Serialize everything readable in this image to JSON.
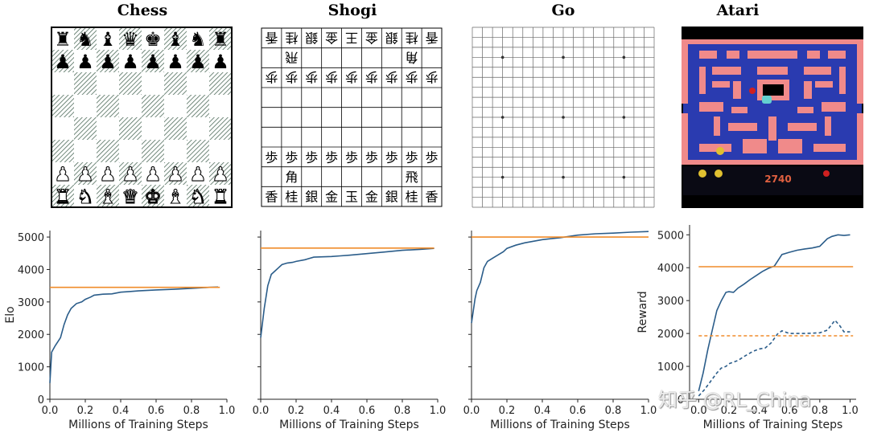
{
  "panels": [
    {
      "title": "Chess"
    },
    {
      "title": "Shogi"
    },
    {
      "title": "Go"
    },
    {
      "title": "Atari"
    }
  ],
  "chess": {
    "rows": [
      [
        "bR",
        "bN",
        "bB",
        "bQ",
        "bK",
        "bB",
        "bN",
        "bR"
      ],
      [
        "bP",
        "bP",
        "bP",
        "bP",
        "bP",
        "bP",
        "bP",
        "bP"
      ],
      [
        "",
        "",
        "",
        "",
        "",
        "",
        "",
        ""
      ],
      [
        "",
        "",
        "",
        "",
        "",
        "",
        "",
        ""
      ],
      [
        "",
        "",
        "",
        "",
        "",
        "",
        "",
        ""
      ],
      [
        "",
        "",
        "",
        "",
        "",
        "",
        "",
        ""
      ],
      [
        "wP",
        "wP",
        "wP",
        "wP",
        "wP",
        "wP",
        "wP",
        "wP"
      ],
      [
        "wR",
        "wN",
        "wB",
        "wQ",
        "wK",
        "wB",
        "wN",
        "wR"
      ]
    ]
  },
  "shogi": {
    "rows": [
      [
        "香",
        "桂",
        "銀",
        "金",
        "王",
        "金",
        "銀",
        "桂",
        "香"
      ],
      [
        "",
        "飛",
        "",
        "",
        "",
        "",
        "",
        "角",
        ""
      ],
      [
        "歩",
        "歩",
        "歩",
        "歩",
        "歩",
        "歩",
        "歩",
        "歩",
        "歩"
      ],
      [
        "",
        "",
        "",
        "",
        "",
        "",
        "",
        "",
        ""
      ],
      [
        "",
        "",
        "",
        "",
        "",
        "",
        "",
        "",
        ""
      ],
      [
        "",
        "",
        "",
        "",
        "",
        "",
        "",
        "",
        ""
      ],
      [
        "歩",
        "歩",
        "歩",
        "歩",
        "歩",
        "歩",
        "歩",
        "歩",
        "歩"
      ],
      [
        "",
        "角",
        "",
        "",
        "",
        "",
        "",
        "飛",
        ""
      ],
      [
        "香",
        "桂",
        "銀",
        "金",
        "玉",
        "金",
        "銀",
        "桂",
        "香"
      ]
    ],
    "flipped_rows": 3
  },
  "go": {
    "size": 19,
    "star_points": [
      3,
      9,
      15
    ]
  },
  "atari": {
    "score": "2740"
  },
  "watermark": "知乎 @RL_China",
  "colors": {
    "agent_line": "#2b5d8a",
    "baseline_line": "#f08c2a",
    "axis": "#222222"
  },
  "chart_data": [
    {
      "type": "line",
      "ylabel": "Elo",
      "xlabel": "Millions of Training Steps",
      "xlim": [
        0,
        1.0
      ],
      "ylim": [
        0,
        5200
      ],
      "xticks": [
        "0.0",
        "0.2",
        "0.4",
        "0.6",
        "0.8",
        "1.0"
      ],
      "yticks": [
        0,
        1000,
        2000,
        3000,
        4000,
        5000
      ],
      "show_ytick_labels": true,
      "series": [
        {
          "style": "solid",
          "color": "agent",
          "x": [
            0.0,
            0.01,
            0.03,
            0.06,
            0.08,
            0.1,
            0.12,
            0.15,
            0.18,
            0.2,
            0.23,
            0.25,
            0.3,
            0.35,
            0.4,
            0.45,
            0.5,
            0.6,
            0.7,
            0.8,
            0.9,
            0.95
          ],
          "y": [
            500,
            1450,
            1650,
            1900,
            2300,
            2600,
            2800,
            2950,
            3000,
            3080,
            3150,
            3210,
            3240,
            3250,
            3300,
            3320,
            3340,
            3370,
            3390,
            3420,
            3450,
            3460
          ]
        },
        {
          "style": "hline",
          "color": "baseline",
          "x": [
            0.0,
            0.96
          ],
          "y": [
            3450,
            3450
          ]
        }
      ]
    },
    {
      "type": "line",
      "ylabel": "",
      "xlabel": "Millions of Training Steps",
      "xlim": [
        0,
        1.0
      ],
      "ylim": [
        0,
        5200
      ],
      "xticks": [
        "0.0",
        "0.2",
        "0.4",
        "0.6",
        "0.8",
        "1.0"
      ],
      "yticks": [
        0,
        1000,
        2000,
        3000,
        4000,
        5000
      ],
      "show_ytick_labels": false,
      "series": [
        {
          "style": "solid",
          "color": "agent",
          "x": [
            0.0,
            0.02,
            0.04,
            0.06,
            0.08,
            0.1,
            0.12,
            0.15,
            0.18,
            0.2,
            0.25,
            0.3,
            0.35,
            0.4,
            0.45,
            0.5,
            0.6,
            0.7,
            0.8,
            0.9,
            0.98
          ],
          "y": [
            1900,
            2800,
            3500,
            3850,
            3950,
            4050,
            4150,
            4200,
            4220,
            4250,
            4300,
            4380,
            4390,
            4400,
            4420,
            4440,
            4490,
            4540,
            4590,
            4620,
            4650
          ]
        },
        {
          "style": "hline",
          "color": "baseline",
          "x": [
            0.0,
            0.98
          ],
          "y": [
            4660,
            4660
          ]
        }
      ]
    },
    {
      "type": "line",
      "ylabel": "",
      "xlabel": "Millions of Training Steps",
      "xlim": [
        0,
        1.0
      ],
      "ylim": [
        0,
        5200
      ],
      "xticks": [
        "0.0",
        "0.2",
        "0.4",
        "0.6",
        "0.8",
        "1.0"
      ],
      "yticks": [
        0,
        1000,
        2000,
        3000,
        4000,
        5000
      ],
      "show_ytick_labels": false,
      "series": [
        {
          "style": "solid",
          "color": "agent",
          "x": [
            0.0,
            0.02,
            0.03,
            0.05,
            0.07,
            0.09,
            0.12,
            0.15,
            0.18,
            0.2,
            0.25,
            0.3,
            0.35,
            0.4,
            0.45,
            0.5,
            0.55,
            0.6,
            0.7,
            0.8,
            0.9,
            1.0
          ],
          "y": [
            2350,
            3100,
            3350,
            3600,
            4050,
            4250,
            4350,
            4450,
            4550,
            4650,
            4750,
            4820,
            4870,
            4920,
            4950,
            4980,
            5020,
            5060,
            5100,
            5120,
            5150,
            5170
          ]
        },
        {
          "style": "hline",
          "color": "baseline",
          "x": [
            0.0,
            1.0
          ],
          "y": [
            5000,
            5000
          ]
        }
      ]
    },
    {
      "type": "line",
      "ylabel": "Reward",
      "xlabel": "Millions of Training Steps",
      "xlim": [
        -0.06,
        1.04
      ],
      "ylim": [
        0,
        5300
      ],
      "xticks": [
        "0.0",
        "0.2",
        "0.4",
        "0.6",
        "0.8",
        "1.0"
      ],
      "yticks": [
        0,
        1000,
        2000,
        3000,
        4000,
        5000
      ],
      "show_ytick_labels": true,
      "series": [
        {
          "style": "solid",
          "color": "agent",
          "x": [
            0.0,
            0.03,
            0.06,
            0.09,
            0.12,
            0.15,
            0.18,
            0.2,
            0.23,
            0.26,
            0.3,
            0.34,
            0.38,
            0.42,
            0.46,
            0.5,
            0.55,
            0.6,
            0.65,
            0.7,
            0.75,
            0.8,
            0.85,
            0.88,
            0.92,
            0.96,
            1.0
          ],
          "y": [
            250,
            800,
            1500,
            2100,
            2700,
            3000,
            3250,
            3270,
            3250,
            3380,
            3500,
            3640,
            3760,
            3880,
            3980,
            4050,
            4400,
            4470,
            4530,
            4570,
            4600,
            4650,
            4880,
            4950,
            5000,
            4980,
            5000
          ]
        },
        {
          "style": "dashed",
          "color": "agent",
          "x": [
            0.0,
            0.04,
            0.08,
            0.12,
            0.15,
            0.18,
            0.2,
            0.23,
            0.26,
            0.3,
            0.33,
            0.36,
            0.4,
            0.44,
            0.48,
            0.52,
            0.55,
            0.6,
            0.65,
            0.7,
            0.75,
            0.8,
            0.85,
            0.9,
            0.93,
            0.96,
            1.0
          ],
          "y": [
            100,
            300,
            550,
            800,
            950,
            1000,
            1080,
            1130,
            1180,
            1300,
            1380,
            1460,
            1530,
            1560,
            1720,
            1980,
            2080,
            2000,
            2000,
            2000,
            2010,
            2020,
            2100,
            2400,
            2250,
            2050,
            2050
          ]
        },
        {
          "style": "hline",
          "color": "baseline",
          "x": [
            0.0,
            1.02
          ],
          "y": [
            4030,
            4030
          ]
        },
        {
          "style": "hline-dashed",
          "color": "baseline",
          "x": [
            0.0,
            1.02
          ],
          "y": [
            1930,
            1930
          ]
        }
      ]
    }
  ]
}
